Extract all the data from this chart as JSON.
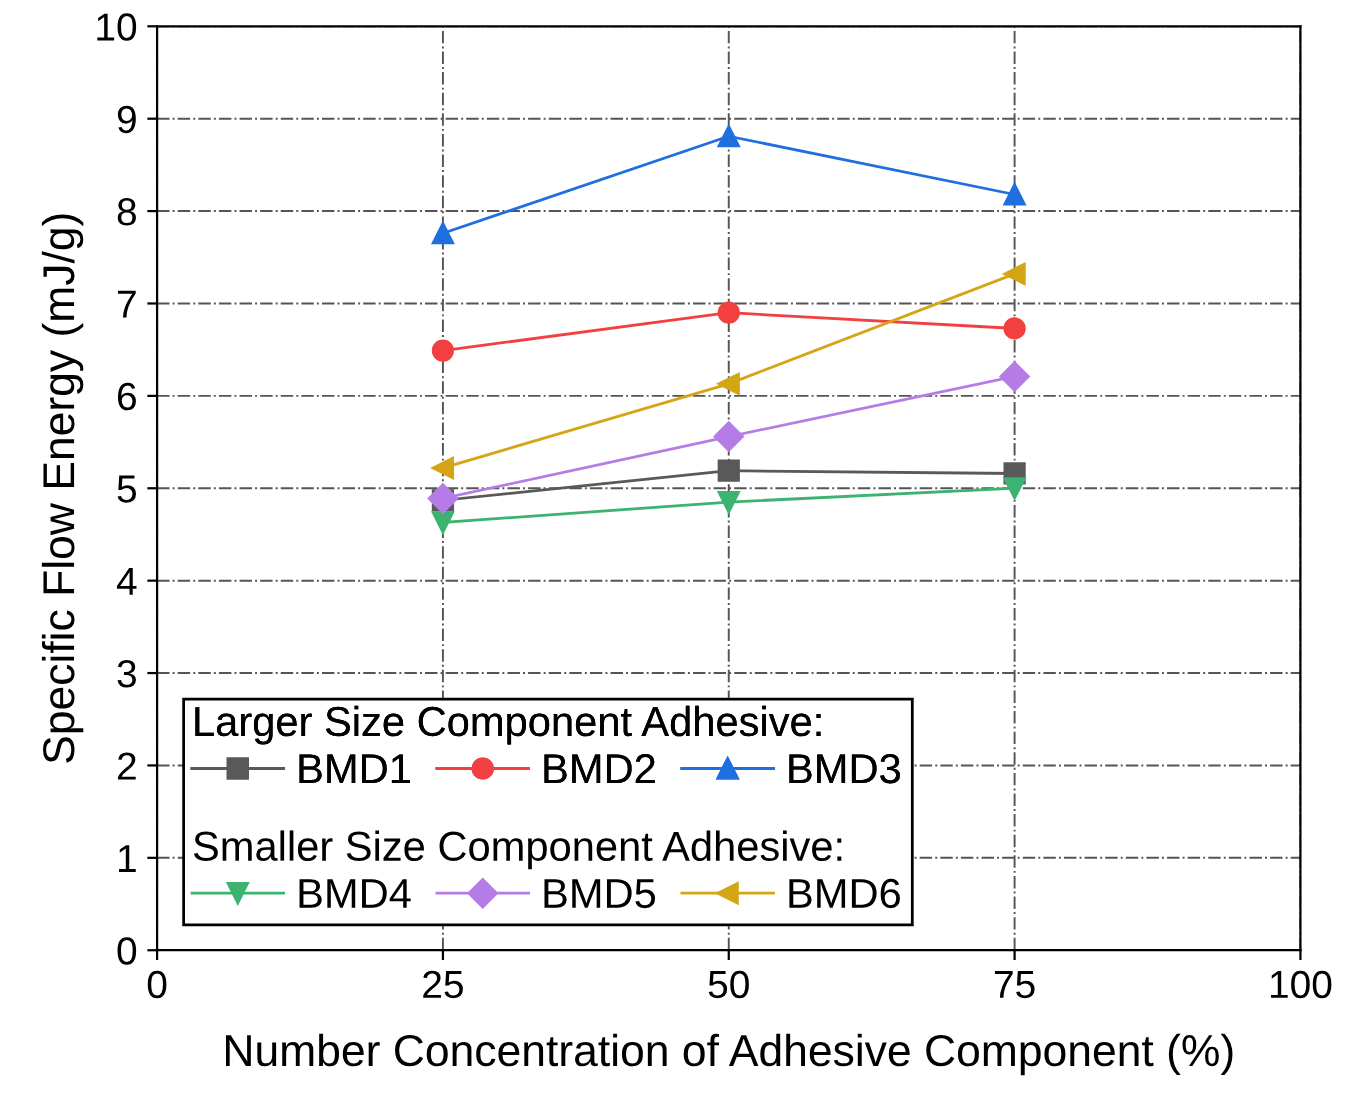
{
  "chart_data": {
    "type": "line",
    "xlabel": "Number Concentration of Adhesive Component (%)",
    "ylabel": "Specific Flow Energy (mJ/g)",
    "x": [
      25,
      50,
      75
    ],
    "series": [
      {
        "name": "BMD1",
        "color": "#595959",
        "marker": "square",
        "values": [
          4.87,
          5.19,
          5.16
        ]
      },
      {
        "name": "BMD2",
        "color": "#f24040",
        "marker": "circle",
        "values": [
          6.49,
          6.9,
          6.73
        ]
      },
      {
        "name": "BMD3",
        "color": "#1f6fde",
        "marker": "triangle",
        "values": [
          7.76,
          8.81,
          8.18
        ]
      },
      {
        "name": "BMD4",
        "color": "#3cb371",
        "marker": "triangle-down",
        "values": [
          4.63,
          4.85,
          5.0
        ]
      },
      {
        "name": "BMD5",
        "color": "#b57ce8",
        "marker": "diamond",
        "values": [
          4.89,
          5.56,
          6.21
        ]
      },
      {
        "name": "BMD6",
        "color": "#d4a514",
        "marker": "triangle-left",
        "values": [
          5.22,
          6.13,
          7.32
        ]
      }
    ],
    "annotations": [
      "Larger Size Component Adhesive:",
      "Smaller Size Component Adhesive:"
    ],
    "xlim": [
      0,
      100
    ],
    "xticks": [
      0,
      25,
      50,
      75,
      100
    ],
    "ylim": [
      0,
      10
    ],
    "yticks": [
      0,
      1,
      2,
      3,
      4,
      5,
      6,
      7,
      8,
      9,
      10
    ],
    "grid": true,
    "legend": "bottom left",
    "line_style": "solid"
  }
}
